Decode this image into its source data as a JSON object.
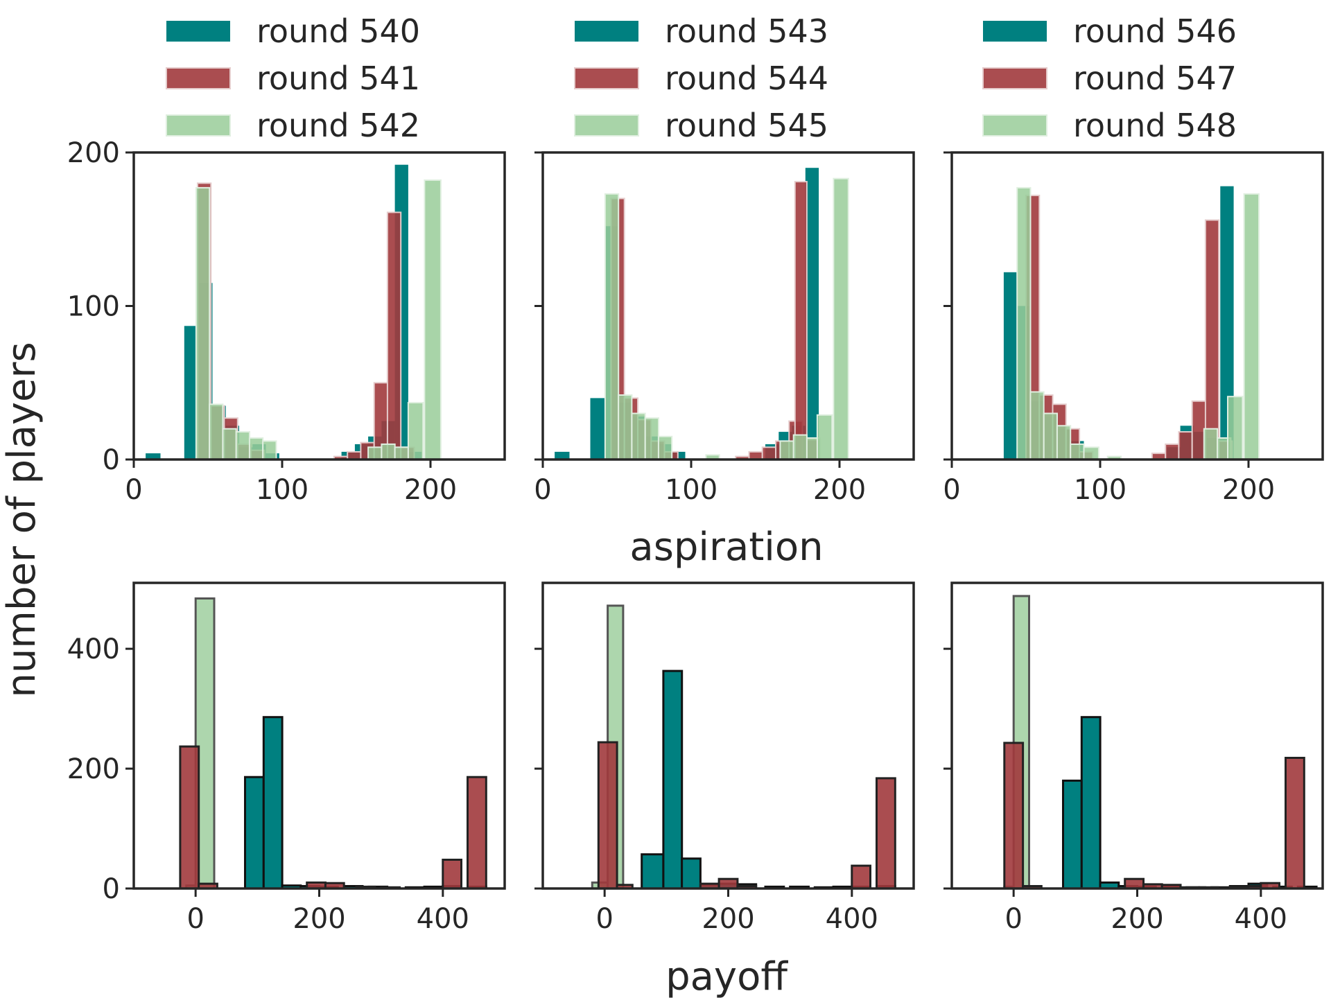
{
  "figure": {
    "ylabel": "number of players",
    "top_xlabel": "aspiration",
    "bottom_xlabel": "payoff"
  },
  "colors": {
    "first": "#008080",
    "second": "#a13a3d",
    "third": "#99cc99",
    "frame": "#262626"
  },
  "legends": [
    [
      "round 540",
      "round 541",
      "round 542"
    ],
    [
      "round 543",
      "round 544",
      "round 545"
    ],
    [
      "round 546",
      "round 547",
      "round 548"
    ]
  ],
  "chart_data": [
    {
      "type": "bar",
      "variable": "aspiration",
      "column": 1,
      "row": "top",
      "xlim": [
        0,
        250
      ],
      "ylim": [
        0,
        200
      ],
      "xticks": [
        0,
        100,
        200
      ],
      "yticks": [
        0,
        100,
        200
      ],
      "xlabel": "aspiration",
      "ylabel": "number of players",
      "series": [
        {
          "name": "round 540",
          "color": "teal",
          "bars": [
            [
              8,
              18,
              4
            ],
            [
              34,
              43,
              87
            ],
            [
              44,
              53,
              115
            ],
            [
              53,
              62,
              35
            ],
            [
              62,
              71,
              22
            ],
            [
              71,
              80,
              8
            ],
            [
              80,
              89,
              10
            ],
            [
              89,
              98,
              4
            ],
            [
              140,
              149,
              5
            ],
            [
              149,
              158,
              10
            ],
            [
              158,
              167,
              15
            ],
            [
              167,
              176,
              25
            ],
            [
              176,
              185,
              192
            ],
            [
              185,
              194,
              5
            ]
          ]
        },
        {
          "name": "round 541",
          "color": "darkred",
          "bars": [
            [
              43,
              52,
              180
            ],
            [
              52,
              61,
              35
            ],
            [
              61,
              70,
              27
            ],
            [
              70,
              79,
              10
            ],
            [
              79,
              88,
              6
            ],
            [
              135,
              144,
              2
            ],
            [
              144,
              153,
              5
            ],
            [
              153,
              162,
              11
            ],
            [
              162,
              171,
              50
            ],
            [
              171,
              180,
              161
            ],
            [
              180,
              189,
              8
            ]
          ]
        },
        {
          "name": "round 542",
          "color": "lightgreen",
          "bars": [
            [
              42,
              51,
              177
            ],
            [
              51,
              60,
              36
            ],
            [
              60,
              69,
              20
            ],
            [
              69,
              78,
              18
            ],
            [
              78,
              87,
              14
            ],
            [
              87,
              96,
              12
            ],
            [
              158,
              167,
              8
            ],
            [
              167,
              176,
              10
            ],
            [
              176,
              185,
              8
            ],
            [
              185,
              195,
              37
            ],
            [
              196,
              207,
              182
            ]
          ]
        }
      ]
    },
    {
      "type": "bar",
      "variable": "aspiration",
      "column": 2,
      "row": "top",
      "xlim": [
        0,
        250
      ],
      "ylim": [
        0,
        200
      ],
      "xticks": [
        0,
        100,
        200
      ],
      "yticks": [
        0,
        100,
        200
      ],
      "xlabel": "aspiration",
      "ylabel": "number of players",
      "series": [
        {
          "name": "round 543",
          "color": "teal",
          "bars": [
            [
              8,
              18,
              5
            ],
            [
              32,
              42,
              40
            ],
            [
              42,
              51,
              152
            ],
            [
              51,
              60,
              37
            ],
            [
              60,
              69,
              28
            ],
            [
              69,
              78,
              15
            ],
            [
              78,
              87,
              10
            ],
            [
              87,
              96,
              5
            ],
            [
              150,
              159,
              10
            ],
            [
              159,
              168,
              18
            ],
            [
              168,
              177,
              22
            ],
            [
              177,
              186,
              190
            ]
          ]
        },
        {
          "name": "round 544",
          "color": "darkred",
          "bars": [
            [
              46,
              55,
              170
            ],
            [
              55,
              64,
              40
            ],
            [
              64,
              73,
              26
            ],
            [
              73,
              82,
              12
            ],
            [
              82,
              91,
              5
            ],
            [
              130,
              139,
              2
            ],
            [
              139,
              148,
              5
            ],
            [
              148,
              157,
              8
            ],
            [
              157,
              166,
              12
            ],
            [
              166,
              175,
              25
            ],
            [
              170,
              178,
              181
            ],
            [
              178,
              187,
              13
            ]
          ]
        },
        {
          "name": "round 545",
          "color": "lightgreen",
          "bars": [
            [
              42,
              51,
              173
            ],
            [
              51,
              60,
              42
            ],
            [
              60,
              69,
              30
            ],
            [
              69,
              78,
              27
            ],
            [
              78,
              87,
              15
            ],
            [
              110,
              119,
              3
            ],
            [
              160,
              169,
              12
            ],
            [
              169,
              178,
              16
            ],
            [
              178,
              187,
              14
            ],
            [
              185,
              195,
              29
            ],
            [
              196,
              206,
              183
            ]
          ]
        }
      ]
    },
    {
      "type": "bar",
      "variable": "aspiration",
      "column": 3,
      "row": "top",
      "xlim": [
        0,
        250
      ],
      "ylim": [
        0,
        200
      ],
      "xticks": [
        0,
        100,
        200
      ],
      "yticks": [
        0,
        100,
        200
      ],
      "xlabel": "aspiration",
      "ylabel": "number of players",
      "series": [
        {
          "name": "round 546",
          "color": "teal",
          "bars": [
            [
              35,
              44,
              122
            ],
            [
              44,
              53,
              100
            ],
            [
              53,
              62,
              38
            ],
            [
              62,
              71,
              28
            ],
            [
              71,
              80,
              20
            ],
            [
              80,
              89,
              12
            ],
            [
              145,
              154,
              8
            ],
            [
              154,
              163,
              22
            ],
            [
              163,
              172,
              18
            ],
            [
              172,
              181,
              14
            ],
            [
              181,
              190,
              178
            ]
          ]
        },
        {
          "name": "round 547",
          "color": "darkred",
          "bars": [
            [
              50,
              59,
              172
            ],
            [
              59,
              68,
              42
            ],
            [
              68,
              77,
              36
            ],
            [
              77,
              86,
              20
            ],
            [
              86,
              95,
              5
            ],
            [
              135,
              144,
              4
            ],
            [
              144,
              153,
              10
            ],
            [
              153,
              162,
              18
            ],
            [
              162,
              171,
              38
            ],
            [
              171,
              180,
              156
            ],
            [
              180,
              189,
              12
            ]
          ]
        },
        {
          "name": "round 548",
          "color": "lightgreen",
          "bars": [
            [
              44,
              53,
              177
            ],
            [
              53,
              62,
              44
            ],
            [
              62,
              71,
              30
            ],
            [
              71,
              80,
              22
            ],
            [
              80,
              89,
              10
            ],
            [
              89,
              99,
              8
            ],
            [
              105,
              114,
              2
            ],
            [
              170,
              179,
              20
            ],
            [
              179,
              188,
              14
            ],
            [
              186,
              196,
              41
            ],
            [
              197,
              207,
              173
            ]
          ]
        }
      ]
    },
    {
      "type": "bar",
      "variable": "payoff",
      "column": 1,
      "row": "bottom",
      "xlim": [
        -100,
        500
      ],
      "ylim": [
        0,
        510
      ],
      "xticks": [
        0,
        200,
        400
      ],
      "yticks": [
        0,
        200,
        400
      ],
      "xlabel": "payoff",
      "ylabel": "number of players",
      "series": [
        {
          "name": "round 542",
          "color": "lightgreen",
          "bars": [
            [
              -15,
              0,
              5
            ],
            [
              0,
              30,
              484
            ]
          ]
        },
        {
          "name": "round 540",
          "color": "teal",
          "bars": [
            [
              80,
              110,
              186
            ],
            [
              110,
              140,
              286
            ],
            [
              140,
              170,
              5
            ],
            [
              170,
              200,
              4
            ],
            [
              200,
              230,
              3
            ],
            [
              240,
              270,
              4
            ],
            [
              280,
              310,
              3
            ],
            [
              340,
              370,
              2
            ],
            [
              370,
              400,
              3
            ],
            [
              400,
              430,
              4
            ],
            [
              440,
              470,
              3
            ]
          ]
        },
        {
          "name": "round 541",
          "color": "darkred",
          "bars": [
            [
              -25,
              5,
              237
            ],
            [
              5,
              35,
              8
            ],
            [
              180,
              210,
              10
            ],
            [
              210,
              240,
              9
            ],
            [
              260,
              290,
              3
            ],
            [
              300,
              330,
              2
            ],
            [
              400,
              430,
              48
            ],
            [
              440,
              470,
              186
            ]
          ]
        }
      ]
    },
    {
      "type": "bar",
      "variable": "payoff",
      "column": 2,
      "row": "bottom",
      "xlim": [
        -100,
        500
      ],
      "ylim": [
        0,
        510
      ],
      "xticks": [
        0,
        200,
        400
      ],
      "yticks": [
        0,
        200,
        400
      ],
      "xlabel": "payoff",
      "ylabel": "number of players",
      "series": [
        {
          "name": "round 545",
          "color": "lightgreen",
          "bars": [
            [
              -20,
              5,
              10
            ],
            [
              5,
              30,
              472
            ]
          ]
        },
        {
          "name": "round 543",
          "color": "teal",
          "bars": [
            [
              60,
              95,
              57
            ],
            [
              95,
              125,
              363
            ],
            [
              125,
              155,
              50
            ],
            [
              155,
              185,
              6
            ],
            [
              185,
              215,
              8
            ],
            [
              215,
              245,
              7
            ],
            [
              260,
              290,
              3
            ],
            [
              300,
              330,
              3
            ],
            [
              340,
              370,
              2
            ],
            [
              370,
              400,
              3
            ],
            [
              400,
              430,
              3
            ],
            [
              440,
              470,
              4
            ]
          ]
        },
        {
          "name": "round 544",
          "color": "darkred",
          "bars": [
            [
              -10,
              20,
              244
            ],
            [
              20,
              45,
              6
            ],
            [
              155,
              185,
              8
            ],
            [
              185,
              215,
              16
            ],
            [
              215,
              245,
              4
            ],
            [
              400,
              430,
              38
            ],
            [
              440,
              470,
              184
            ]
          ]
        }
      ]
    },
    {
      "type": "bar",
      "variable": "payoff",
      "column": 3,
      "row": "bottom",
      "xlim": [
        -100,
        500
      ],
      "ylim": [
        0,
        510
      ],
      "xticks": [
        0,
        200,
        400
      ],
      "yticks": [
        0,
        200,
        400
      ],
      "xlabel": "payoff",
      "ylabel": "number of players",
      "series": [
        {
          "name": "round 548",
          "color": "lightgreen",
          "bars": [
            [
              -15,
              0,
              3
            ],
            [
              0,
              25,
              488
            ]
          ]
        },
        {
          "name": "round 546",
          "color": "teal",
          "bars": [
            [
              80,
              110,
              180
            ],
            [
              110,
              140,
              286
            ],
            [
              140,
              170,
              10
            ],
            [
              170,
              200,
              4
            ],
            [
              200,
              230,
              3
            ],
            [
              240,
              270,
              3
            ],
            [
              280,
              310,
              2
            ],
            [
              320,
              350,
              2
            ],
            [
              350,
              380,
              4
            ],
            [
              380,
              410,
              8
            ],
            [
              420,
              450,
              3
            ],
            [
              460,
              490,
              3
            ]
          ]
        },
        {
          "name": "round 547",
          "color": "darkred",
          "bars": [
            [
              -15,
              15,
              243
            ],
            [
              15,
              45,
              4
            ],
            [
              180,
              210,
              16
            ],
            [
              210,
              240,
              7
            ],
            [
              240,
              270,
              6
            ],
            [
              270,
              300,
              2
            ],
            [
              300,
              330,
              2
            ],
            [
              350,
              380,
              3
            ],
            [
              380,
              410,
              4
            ],
            [
              400,
              430,
              9
            ],
            [
              440,
              470,
              218
            ]
          ]
        }
      ]
    }
  ]
}
